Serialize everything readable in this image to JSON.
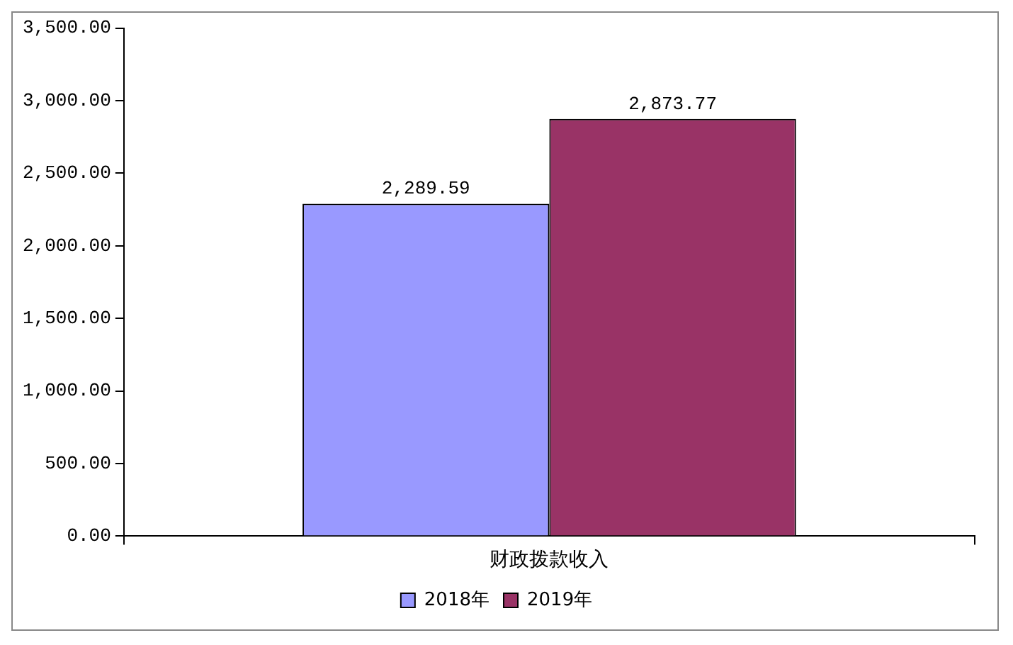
{
  "chart_data": {
    "type": "bar",
    "categories": [
      "财政拨款收入"
    ],
    "series": [
      {
        "name": "2018年",
        "color": "#9999ff",
        "values": [
          2289.59
        ],
        "value_labels": [
          "2,289.59"
        ]
      },
      {
        "name": "2019年",
        "color": "#993366",
        "values": [
          2873.77
        ],
        "value_labels": [
          "2,873.77"
        ]
      }
    ],
    "ylim": [
      0,
      3500
    ],
    "yticks": [
      {
        "value": 0,
        "label": "0.00"
      },
      {
        "value": 500,
        "label": "500.00"
      },
      {
        "value": 1000,
        "label": "1,000.00"
      },
      {
        "value": 1500,
        "label": "1,500.00"
      },
      {
        "value": 2000,
        "label": "2,000.00"
      },
      {
        "value": 2500,
        "label": "2,500.00"
      },
      {
        "value": 3000,
        "label": "3,000.00"
      },
      {
        "value": 3500,
        "label": "3,500.00"
      }
    ],
    "grid": false,
    "legend": "bottom"
  }
}
